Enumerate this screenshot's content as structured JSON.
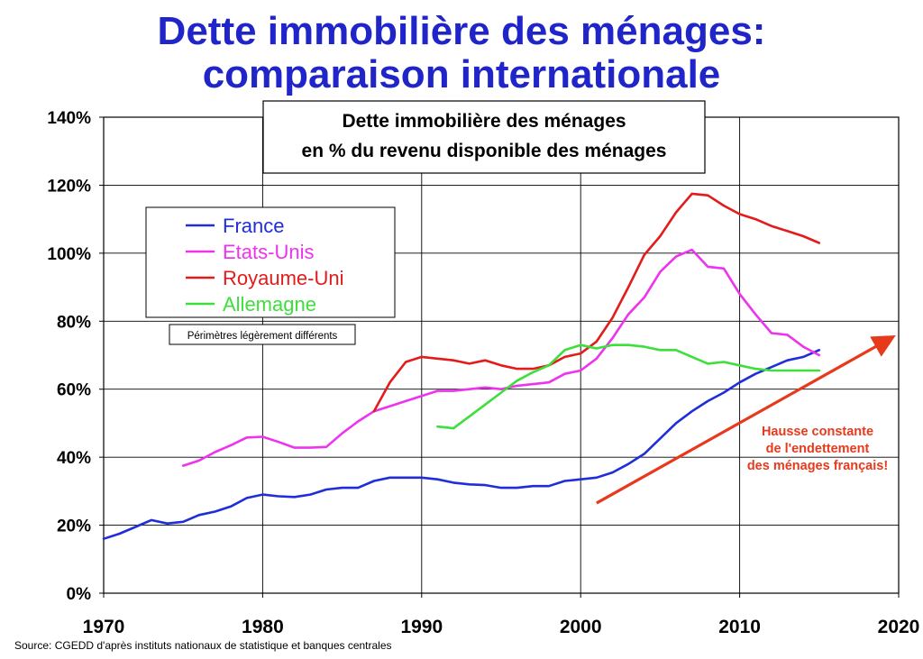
{
  "title_line1": "Dette immobilière des ménages:",
  "title_line2": "comparaison internationale",
  "source": "Source: CGEDD d'après instituts nationaux de statistique et banques centrales",
  "chart_data": {
    "type": "line",
    "title_box": [
      "Dette immobilière des ménages",
      "en % du revenu disponible des ménages"
    ],
    "xlim": [
      1970,
      2020
    ],
    "ylim": [
      0,
      140
    ],
    "x_ticks": [
      "1970",
      "1980",
      "1990",
      "2000",
      "2010",
      "2020"
    ],
    "y_ticks": [
      "0%",
      "20%",
      "40%",
      "60%",
      "80%",
      "100%",
      "120%",
      "140%"
    ],
    "grid": true,
    "legend_position": "upper-left",
    "note": "Périmètres légèrement différents",
    "annotation": [
      "Hausse constante",
      "de l'endettement",
      "des ménages français!"
    ],
    "annotation_color": "#e8391d",
    "trend_arrow": {
      "from": [
        2001,
        26.5
      ],
      "to": [
        2019.5,
        75
      ]
    },
    "series": [
      {
        "name": "France",
        "color": "#1f2ed8",
        "x": [
          1970,
          1971,
          1972,
          1973,
          1974,
          1975,
          1976,
          1977,
          1978,
          1979,
          1980,
          1981,
          1982,
          1983,
          1984,
          1985,
          1986,
          1987,
          1988,
          1989,
          1990,
          1991,
          1992,
          1993,
          1994,
          1995,
          1996,
          1997,
          1998,
          1999,
          2000,
          2001,
          2002,
          2003,
          2004,
          2005,
          2006,
          2007,
          2008,
          2009,
          2010,
          2011,
          2012,
          2013,
          2014,
          2015
        ],
        "y": [
          16,
          17.5,
          19.5,
          21.5,
          20.5,
          21,
          23,
          24,
          25.5,
          28,
          29,
          28.5,
          28.3,
          29,
          30.5,
          31,
          31,
          33,
          34,
          34,
          34,
          33.5,
          32.5,
          32,
          31.8,
          31,
          31,
          31.5,
          31.5,
          33,
          33.5,
          34,
          35.5,
          38,
          41,
          45.5,
          50,
          53.5,
          56.5,
          59,
          62,
          64.5,
          66.5,
          68.5,
          69.5,
          71.5
        ]
      },
      {
        "name": "Etats-Unis",
        "color": "#ee33ee",
        "x": [
          1975,
          1976,
          1977,
          1978,
          1979,
          1980,
          1981,
          1982,
          1983,
          1984,
          1985,
          1986,
          1987,
          1988,
          1989,
          1990,
          1991,
          1992,
          1993,
          1994,
          1995,
          1996,
          1997,
          1998,
          1999,
          2000,
          2001,
          2002,
          2003,
          2004,
          2005,
          2006,
          2007,
          2008,
          2009,
          2010,
          2011,
          2012,
          2013,
          2014,
          2015
        ],
        "y": [
          37.5,
          39,
          41.5,
          43.5,
          45.8,
          46,
          44.5,
          42.8,
          42.8,
          43,
          47,
          50.5,
          53.5,
          55,
          56.5,
          58,
          59.5,
          59.5,
          60,
          60.5,
          60,
          61,
          61.5,
          62,
          64.5,
          65.5,
          69,
          75,
          82,
          87,
          94.5,
          99,
          101,
          96,
          95.5,
          88,
          82,
          76.5,
          76,
          72.5,
          70
        ]
      },
      {
        "name": "Royaume-Uni",
        "color": "#e31b1b",
        "x": [
          1987,
          1988,
          1989,
          1990,
          1991,
          1992,
          1993,
          1994,
          1995,
          1996,
          1997,
          1998,
          1999,
          2000,
          2001,
          2002,
          2003,
          2004,
          2005,
          2006,
          2007,
          2008,
          2009,
          2010,
          2011,
          2012,
          2013,
          2014,
          2015
        ],
        "y": [
          53.5,
          62,
          68,
          69.5,
          69,
          68.5,
          67.5,
          68.5,
          67,
          66,
          66,
          67,
          69.5,
          70.5,
          74,
          81,
          90,
          99.5,
          105,
          112,
          117.5,
          117,
          114,
          111.5,
          110,
          108,
          106.5,
          105,
          103
        ]
      },
      {
        "name": "Allemagne",
        "color": "#3ddf3a",
        "x": [
          1991,
          1992,
          1993,
          1994,
          1995,
          1996,
          1997,
          1998,
          1999,
          2000,
          2001,
          2002,
          2003,
          2004,
          2005,
          2006,
          2007,
          2008,
          2009,
          2010,
          2011,
          2012,
          2013,
          2014,
          2015
        ],
        "y": [
          49,
          48.5,
          52,
          55.5,
          59,
          62.5,
          65,
          67,
          71.5,
          73,
          72,
          73,
          73,
          72.5,
          71.5,
          71.5,
          69.5,
          67.5,
          68,
          67,
          66,
          65.5,
          65.5,
          65.5,
          65.5
        ]
      }
    ]
  }
}
